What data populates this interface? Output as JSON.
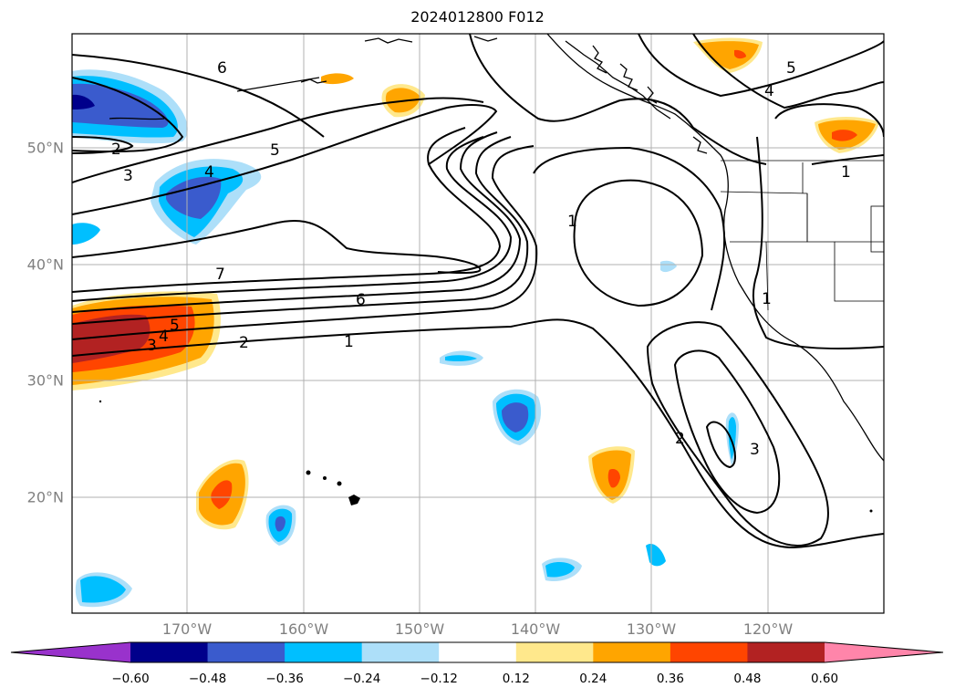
{
  "title": "2024012800 F012",
  "axes": {
    "longitude_labels": [
      "170°W",
      "160°W",
      "150°W",
      "140°W",
      "130°W",
      "120°W"
    ],
    "latitude_labels": [
      "50°N",
      "40°N",
      "30°N",
      "20°N"
    ]
  },
  "colorbar": {
    "tick_labels": [
      "−0.60",
      "−0.48",
      "−0.36",
      "−0.24",
      "−0.12",
      "0.12",
      "0.24",
      "0.36",
      "0.48",
      "0.60"
    ],
    "colors": [
      "#9932cc",
      "#00008b",
      "#3a5bcd",
      "#00bfff",
      "#addff9",
      "#ffffff",
      "#ffe88c",
      "#ffa500",
      "#ff4500",
      "#b22222",
      "#ff85aa"
    ]
  },
  "contour_labels": [
    "6",
    "5",
    "4",
    "2",
    "3",
    "7",
    "6",
    "5",
    "4",
    "3",
    "2",
    "1",
    "1",
    "1",
    "1",
    "2",
    "3",
    "4",
    "5"
  ],
  "colors": {
    "grid": "#b0b0b0",
    "contour": "#000000",
    "coast": "#000000"
  }
}
